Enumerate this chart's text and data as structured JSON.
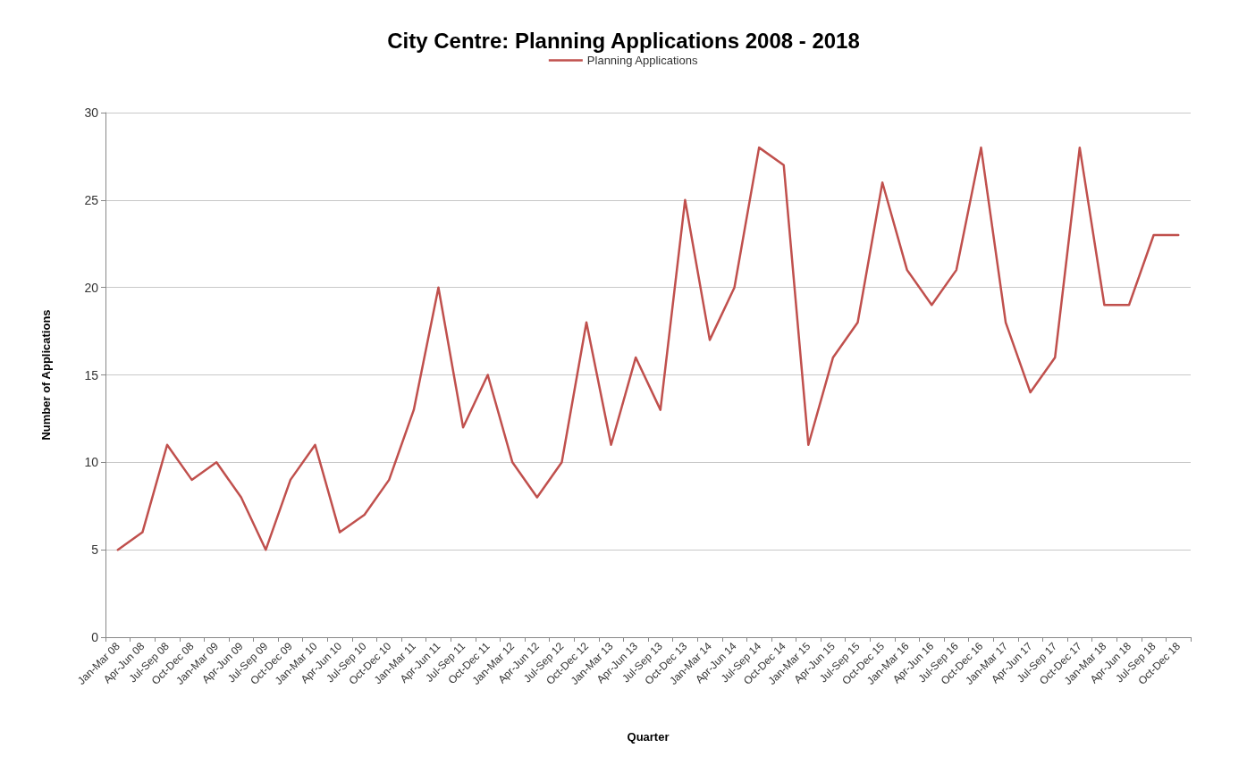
{
  "chart_data": {
    "type": "line",
    "title": "City Centre: Planning Applications 2008 - 2018",
    "xlabel": "Quarter",
    "ylabel": "Number of Applications",
    "categories": [
      "Jan-Mar 08",
      "Apr-Jun 08",
      "Jul-Sep 08",
      "Oct-Dec 08",
      "Jan-Mar 09",
      "Apr-Jun 09",
      "Jul-Sep 09",
      "Oct-Dec 09",
      "Jan-Mar 10",
      "Apr-Jun 10",
      "Jul-Sep 10",
      "Oct-Dec 10",
      "Jan-Mar 11",
      "Apr-Jun 11",
      "Jul-Sep 11",
      "Oct-Dec 11",
      "Jan-Mar 12",
      "Apr-Jun 12",
      "Jul-Sep 12",
      "Oct-Dec 12",
      "Jan-Mar 13",
      "Apr-Jun 13",
      "Jul-Sep 13",
      "Oct-Dec 13",
      "Jan-Mar 14",
      "Apr-Jun 14",
      "Jul-Sep 14",
      "Oct-Dec 14",
      "Jan-Mar 15",
      "Apr-Jun 15",
      "Jul-Sep 15",
      "Oct-Dec 15",
      "Jan-Mar 16",
      "Apr-Jun 16",
      "Jul-Sep 16",
      "Oct-Dec 16",
      "Jan-Mar 17",
      "Apr-Jun 17",
      "Jul-Sep 17",
      "Oct-Dec 17",
      "Jan-Mar 18",
      "Apr-Jun 18",
      "Jul-Sep 18",
      "Oct-Dec 18"
    ],
    "series": [
      {
        "name": "Planning Applications",
        "color": "#c0504d",
        "values": [
          5,
          6,
          11,
          9,
          10,
          8,
          5,
          9,
          11,
          6,
          7,
          9,
          13,
          20,
          12,
          15,
          10,
          8,
          10,
          18,
          11,
          16,
          13,
          25,
          17,
          20,
          28,
          27,
          11,
          16,
          18,
          26,
          21,
          19,
          21,
          28,
          18,
          14,
          16,
          28,
          19,
          19,
          23,
          23
        ]
      }
    ],
    "ylim": [
      0,
      30
    ],
    "yticks": [
      0,
      5,
      10,
      15,
      20,
      25,
      30
    ],
    "grid": "y",
    "legend": "top",
    "marker": "none",
    "line_style": "solid"
  }
}
